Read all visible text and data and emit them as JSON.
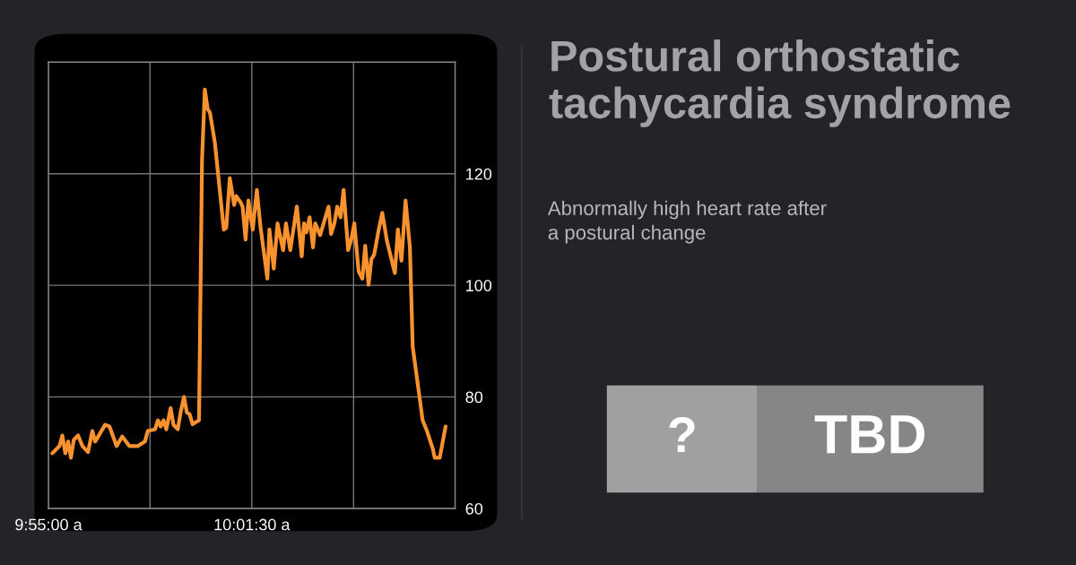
{
  "chart_data": {
    "type": "line",
    "title": "Postural orthostatic tachycardia syndrome",
    "subtitle": "Abnormally high heart rate after\na postural change",
    "annotations": [
      "?",
      "TBD"
    ],
    "x": [
      9.9188,
      9.9226,
      9.9241,
      9.9257,
      9.9272,
      9.9287,
      9.9302,
      9.9325,
      9.9348,
      9.9378,
      9.9401,
      9.9416,
      9.9469,
      9.9492,
      9.953,
      9.956,
      9.9598,
      9.9644,
      9.9681,
      9.9696,
      9.9735,
      9.975,
      9.9765,
      9.978,
      9.9795,
      9.9818,
      9.9833,
      9.9856,
      9.9871,
      9.9889,
      9.9904,
      9.9919,
      9.9935,
      9.9954,
      9.9969,
      9.9985,
      10.0,
      10.0015,
      10.0027,
      10.0053,
      10.0101,
      10.0114,
      10.0133,
      10.0156,
      10.0167,
      10.019,
      10.0201,
      10.0217,
      10.0232,
      10.0255,
      10.0277,
      10.0296,
      10.0333,
      10.0344,
      10.0367,
      10.0387,
      10.0417,
      10.0432,
      10.0455,
      10.049,
      10.0516,
      10.0528,
      10.0541,
      10.0558,
      10.0576,
      10.0588,
      10.0614,
      10.0659,
      10.0672,
      10.069,
      10.0705,
      10.0723,
      10.0739,
      10.0763,
      10.0781,
      10.0796,
      10.0819,
      10.0839,
      10.0854,
      10.0872,
      10.0887,
      10.0902,
      10.0925,
      10.0945,
      10.097,
      10.1012,
      10.1028,
      10.1047,
      10.1069,
      10.1092,
      10.1107,
      10.116,
      10.1183,
      10.1214,
      10.1224,
      10.1251,
      10.1282
    ],
    "series": [
      {
        "color": "#f7922e",
        "values": [
          69.9,
          71.2,
          73.1,
          69.9,
          72.0,
          69.1,
          72.3,
          73.1,
          71.2,
          70.1,
          73.9,
          72.0,
          75.0,
          74.7,
          71.2,
          72.9,
          71.2,
          71.2,
          72.0,
          73.9,
          74.2,
          75.8,
          74.7,
          75.8,
          74.2,
          78.0,
          75.0,
          74.2,
          77.2,
          80.0,
          77.2,
          76.9,
          75.1,
          75.5,
          75.8,
          122.5,
          135.1,
          131.6,
          131.0,
          125.7,
          110.0,
          110.3,
          119.2,
          114.4,
          116.0,
          114.9,
          114.1,
          108.2,
          115.2,
          110.0,
          117.1,
          110.6,
          101.2,
          110.0,
          103.0,
          111.1,
          106.3,
          111.1,
          106.3,
          114.1,
          105.2,
          111.1,
          109.5,
          112.2,
          106.8,
          111.1,
          109.0,
          114.1,
          109.2,
          111.1,
          114.1,
          112.2,
          117.1,
          106.3,
          108.4,
          111.1,
          102.5,
          101.2,
          107.1,
          100.1,
          104.7,
          105.5,
          109.8,
          113.0,
          107.9,
          102.2,
          110.0,
          104.4,
          115.2,
          106.8,
          89.0,
          75.8,
          73.9,
          70.7,
          69.1,
          69.1,
          74.7
        ]
      }
    ],
    "xlim": [
      9.9167,
      10.1333
    ],
    "xticks": [
      {
        "value": 9.9167,
        "label": "9:55:00 a"
      },
      {
        "value": 9.9708,
        "label": null
      },
      {
        "value": 10.025,
        "label": "10:01:30 a"
      },
      {
        "value": 10.0792,
        "label": null
      },
      {
        "value": 10.1333,
        "label": null
      }
    ],
    "ylim": [
      60,
      140
    ],
    "yticks": [
      60,
      80,
      100,
      120
    ],
    "grid": true,
    "line_style": "solid",
    "marker": "none"
  }
}
